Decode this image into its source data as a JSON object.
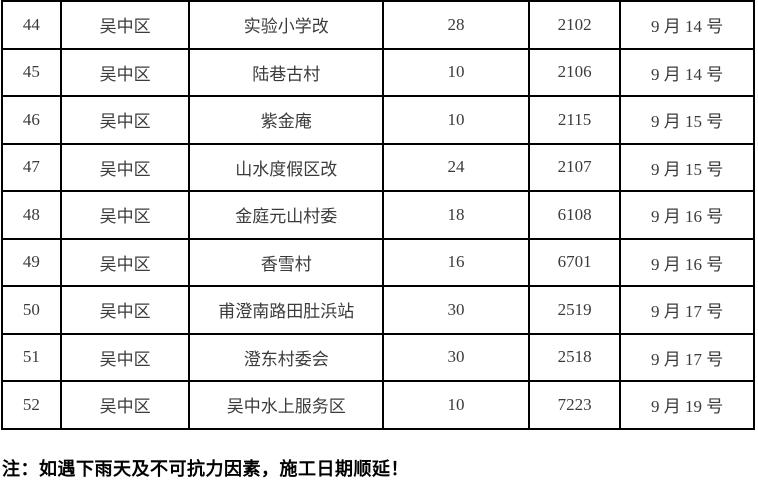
{
  "table": {
    "rows": [
      {
        "index": "44",
        "district": "吴中区",
        "location": "实验小学改",
        "quantity": "28",
        "code": "2102",
        "date": "9 月 14 号"
      },
      {
        "index": "45",
        "district": "吴中区",
        "location": "陆巷古村",
        "quantity": "10",
        "code": "2106",
        "date": "9 月 14 号"
      },
      {
        "index": "46",
        "district": "吴中区",
        "location": "紫金庵",
        "quantity": "10",
        "code": "2115",
        "date": "9 月 15 号"
      },
      {
        "index": "47",
        "district": "吴中区",
        "location": "山水度假区改",
        "quantity": "24",
        "code": "2107",
        "date": "9 月 15 号"
      },
      {
        "index": "48",
        "district": "吴中区",
        "location": "金庭元山村委",
        "quantity": "18",
        "code": "6108",
        "date": "9 月 16 号"
      },
      {
        "index": "49",
        "district": "吴中区",
        "location": "香雪村",
        "quantity": "16",
        "code": "6701",
        "date": "9 月 16 号"
      },
      {
        "index": "50",
        "district": "吴中区",
        "location": "甫澄南路田肚浜站",
        "quantity": "30",
        "code": "2519",
        "date": "9 月 17 号"
      },
      {
        "index": "51",
        "district": "吴中区",
        "location": "澄东村委会",
        "quantity": "30",
        "code": "2518",
        "date": "9 月 17 号"
      },
      {
        "index": "52",
        "district": "吴中区",
        "location": "吴中水上服务区",
        "quantity": "10",
        "code": "7223",
        "date": "9 月 19 号"
      }
    ]
  },
  "note": "注：如遇下雨天及不可抗力因素，施工日期顺延！",
  "colors": {
    "border": "#000000",
    "table_text": "#3b3b3b",
    "note_text": "#000000",
    "background": "#ffffff"
  }
}
